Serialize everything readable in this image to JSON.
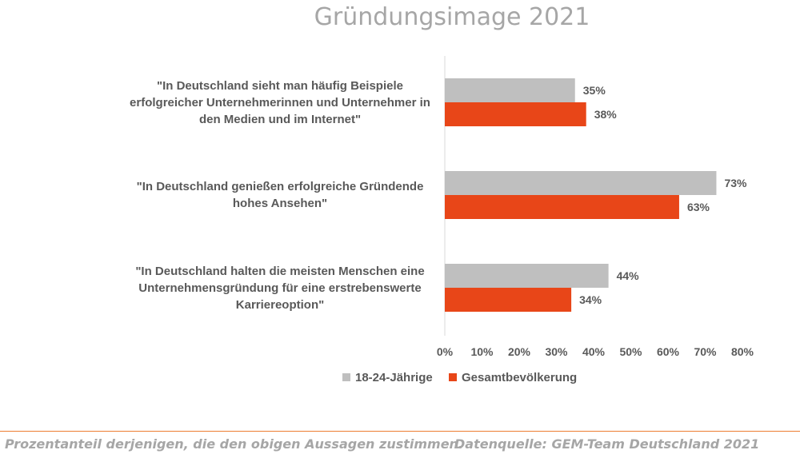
{
  "chart_data": {
    "type": "bar",
    "orientation": "horizontal",
    "title": "Gründungsimage 2021",
    "categories": [
      "\"In Deutschland sieht man häufig Beispiele erfolgreicher Unternehmerinnen und Unternehmer in den Medien und im Internet\"",
      "\"In Deutschland genießen erfolgreiche Gründende hohes Ansehen\"",
      "\"In Deutschland halten die meisten Menschen eine Unternehmensgründung für eine erstrebenswerte Karriereoption\""
    ],
    "category_lines": [
      [
        "\"In Deutschland sieht man häufig Beispiele",
        "erfolgreicher Unternehmerinnen und Unternehmer in",
        "den Medien und im Internet\""
      ],
      [
        "\"In Deutschland genießen erfolgreiche Gründende",
        "hohes Ansehen\""
      ],
      [
        "\"In Deutschland halten die meisten Menschen eine",
        "Unternehmensgründung für eine erstrebenswerte",
        "Karriereoption\""
      ]
    ],
    "series": [
      {
        "name": "18-24-Jährige",
        "color": "#bfbfbf",
        "values": [
          35,
          73,
          44
        ],
        "labels": [
          "35%",
          "73%",
          "44%"
        ]
      },
      {
        "name": "Gesamtbevölkerung",
        "color": "#e84618",
        "values": [
          38,
          63,
          34
        ],
        "labels": [
          "38%",
          "63%",
          "34%"
        ]
      }
    ],
    "xlim": [
      0,
      80
    ],
    "x_ticks": [
      0,
      10,
      20,
      30,
      40,
      50,
      60,
      70,
      80
    ],
    "x_tick_labels": [
      "0%",
      "10%",
      "20%",
      "30%",
      "40%",
      "50%",
      "60%",
      "70%",
      "80%"
    ],
    "grid": false,
    "legend_position": "bottom-center"
  },
  "footer": {
    "note": "Prozentanteil derjenigen, die den obigen Aussagen zustimmen.",
    "source": "Datenquelle: GEM-Team Deutschland 2021"
  },
  "colors": {
    "accent": "#ed7d31"
  }
}
